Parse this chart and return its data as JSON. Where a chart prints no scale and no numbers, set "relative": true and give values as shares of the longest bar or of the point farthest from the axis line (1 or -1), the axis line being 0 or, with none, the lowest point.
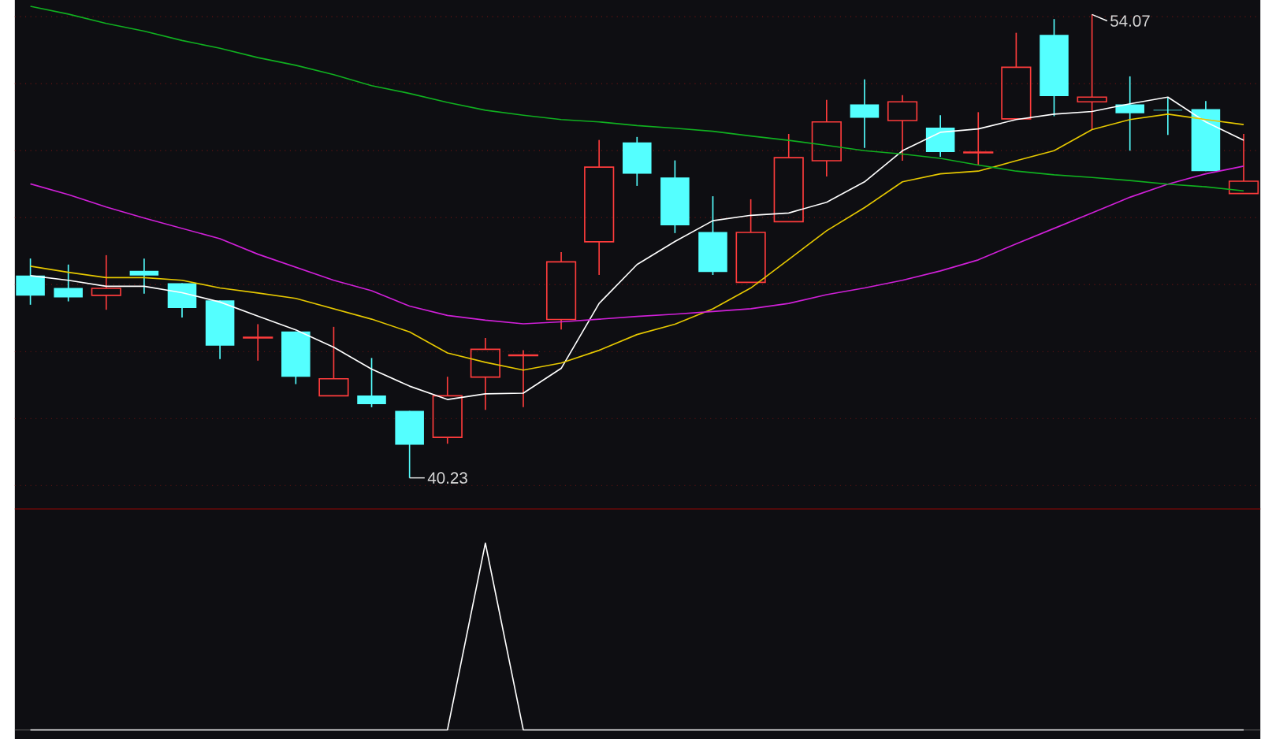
{
  "chart_data": [
    {
      "type": "candlestick",
      "categories": [
        null,
        null,
        null,
        null,
        null,
        null,
        null,
        null,
        null,
        null,
        null,
        null,
        null,
        null,
        null,
        null,
        null,
        null,
        null,
        null,
        null,
        null,
        null,
        null,
        null,
        null,
        null,
        null,
        null,
        null,
        null,
        null,
        null
      ],
      "ohlc": [
        [
          46.27,
          46.78,
          45.4,
          45.67
        ],
        [
          45.9,
          46.6,
          45.5,
          45.62
        ],
        [
          45.68,
          46.88,
          45.25,
          45.89
        ],
        [
          46.41,
          46.78,
          45.73,
          46.27
        ],
        [
          46.04,
          46.04,
          45.02,
          45.3
        ],
        [
          45.53,
          45.53,
          43.78,
          44.18
        ],
        [
          44.41,
          44.82,
          43.73,
          44.43
        ],
        [
          44.6,
          44.6,
          43.03,
          43.25
        ],
        [
          42.68,
          44.74,
          42.68,
          43.19
        ],
        [
          42.69,
          43.81,
          42.34,
          42.43
        ],
        [
          42.23,
          42.23,
          40.23,
          41.22
        ],
        [
          41.44,
          43.25,
          41.25,
          42.68
        ],
        [
          43.24,
          44.41,
          42.26,
          44.07
        ],
        [
          43.88,
          44.04,
          42.34,
          43.9
        ],
        [
          44.96,
          46.97,
          44.66,
          46.68
        ],
        [
          47.28,
          50.32,
          46.29,
          49.51
        ],
        [
          50.25,
          50.41,
          48.95,
          49.31
        ],
        [
          49.2,
          49.71,
          47.54,
          47.77
        ],
        [
          47.57,
          48.64,
          46.29,
          46.38
        ],
        [
          46.07,
          48.55,
          46.07,
          47.56
        ],
        [
          47.88,
          50.5,
          47.88,
          49.79
        ],
        [
          49.7,
          51.52,
          49.23,
          50.86
        ],
        [
          51.38,
          52.13,
          50.08,
          50.98
        ],
        [
          50.9,
          51.66,
          49.7,
          51.46
        ],
        [
          50.69,
          51.06,
          49.82,
          49.96
        ],
        [
          49.94,
          51.15,
          49.57,
          49.96
        ],
        [
          50.95,
          53.52,
          50.95,
          52.49
        ],
        [
          53.46,
          53.93,
          51.03,
          51.63
        ],
        [
          51.46,
          54.07,
          50.64,
          51.6
        ],
        [
          51.38,
          52.22,
          50.0,
          51.12
        ],
        [
          51.22,
          51.58,
          50.47,
          51.2
        ],
        [
          51.24,
          51.48,
          49.39,
          49.39
        ],
        [
          48.72,
          50.5,
          48.72,
          49.09
        ]
      ],
      "series": [
        {
          "type": "line",
          "color": "#ffffff",
          "values": [
            46.27,
            46.13,
            45.95,
            45.95,
            45.76,
            45.48,
            45.06,
            44.65,
            44.13,
            43.48,
            42.97,
            42.57,
            42.74,
            42.76,
            43.5,
            45.44,
            46.6,
            47.29,
            47.91,
            48.07,
            48.14,
            48.46,
            49.07,
            50.0,
            50.55,
            50.65,
            50.93,
            51.09,
            51.17,
            51.4,
            51.6,
            50.86,
            50.31
          ]
        },
        {
          "type": "line",
          "color": "#e6c800",
          "values": [
            46.55,
            46.37,
            46.21,
            46.21,
            46.13,
            45.9,
            45.75,
            45.59,
            45.28,
            44.97,
            44.59,
            43.96,
            43.68,
            43.45,
            43.66,
            44.04,
            44.51,
            44.82,
            45.28,
            45.9,
            46.75,
            47.61,
            48.3,
            49.07,
            49.31,
            49.39,
            49.7,
            50.0,
            50.63,
            50.93,
            51.09,
            50.93,
            50.78
          ]
        },
        {
          "type": "line",
          "color": "#d020d8",
          "values": [
            49.01,
            48.69,
            48.32,
            47.99,
            47.68,
            47.37,
            46.91,
            46.52,
            46.13,
            45.82,
            45.36,
            45.08,
            44.94,
            44.83,
            44.89,
            44.97,
            45.05,
            45.12,
            45.2,
            45.28,
            45.44,
            45.7,
            45.9,
            46.13,
            46.41,
            46.74,
            47.22,
            47.68,
            48.14,
            48.61,
            49.0,
            49.31,
            49.54
          ]
        },
        {
          "type": "line",
          "color": "#10b020",
          "values": [
            54.31,
            54.08,
            53.8,
            53.57,
            53.29,
            53.06,
            52.78,
            52.55,
            52.27,
            51.94,
            51.71,
            51.44,
            51.21,
            51.06,
            50.93,
            50.86,
            50.75,
            50.67,
            50.58,
            50.44,
            50.31,
            50.16,
            50.0,
            49.9,
            49.77,
            49.57,
            49.39,
            49.28,
            49.2,
            49.11,
            49.0,
            48.92,
            48.8
          ]
        }
      ],
      "yticks": [
        {
          "value": 40,
          "label": null
        },
        {
          "value": 42,
          "label": null
        },
        {
          "value": 44,
          "label": null
        },
        {
          "value": 46,
          "label": null
        },
        {
          "value": 48,
          "label": null
        },
        {
          "value": 50,
          "label": null
        },
        {
          "value": 52,
          "label": null
        },
        {
          "value": 54,
          "label": null
        }
      ],
      "grid": "y",
      "annotations": [
        "54.07",
        "40.23"
      ]
    },
    {
      "type": "line",
      "relative": true,
      "categories": [
        null,
        null,
        null,
        null,
        null,
        null,
        null,
        null,
        null,
        null,
        null,
        null,
        null,
        null,
        null,
        null,
        null,
        null,
        null,
        null,
        null,
        null,
        null,
        null,
        null,
        null,
        null,
        null,
        null,
        null,
        null,
        null,
        null
      ],
      "series": [
        {
          "color": "#ffffff",
          "values": [
            0,
            0,
            0,
            0,
            0,
            0,
            0,
            0,
            0,
            0,
            0,
            0,
            1,
            0,
            0,
            0,
            0,
            0,
            0,
            0,
            0,
            0,
            0,
            0,
            0,
            0,
            0,
            0,
            0,
            0,
            0,
            0,
            0
          ]
        }
      ]
    }
  ]
}
